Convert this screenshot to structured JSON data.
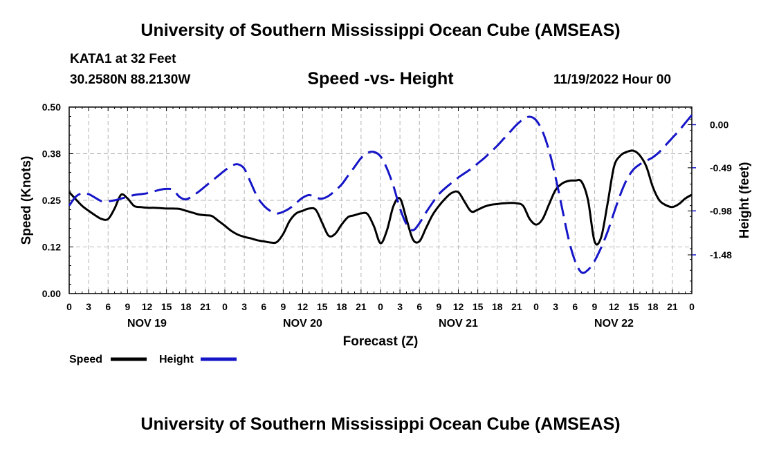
{
  "header": {
    "title": "University of Southern Mississippi Ocean Cube (AMSEAS)",
    "station": "KATA1 at 32 Feet",
    "coords": "30.2580N  88.2130W",
    "chart_title": "Speed -vs- Height",
    "datetime": "11/19/2022 Hour 00"
  },
  "footer": {
    "title": "University of Southern Mississippi Ocean Cube (AMSEAS)"
  },
  "colors": {
    "speed": "#000000",
    "height": "#1515c8",
    "grid": "#b4b4b4"
  },
  "chart_data": {
    "type": "line",
    "title": "Speed -vs- Height",
    "xlabel": "Forecast (Z)",
    "ylabel": "Speed (Knots)",
    "y2label": "Height (feet)",
    "x_range": [
      0,
      96
    ],
    "ylim": [
      0,
      0.5
    ],
    "y2lim": [
      -1.92,
      0.2
    ],
    "yticks": [
      "0.00",
      "0.12",
      "0.25",
      "0.38",
      "0.50"
    ],
    "y2ticks": [
      "0.00",
      "-0.49",
      "-0.98",
      "-1.48"
    ],
    "y2tick_values": [
      0.0,
      -0.49,
      -0.98,
      -1.48
    ],
    "xticks": [
      "0",
      "3",
      "6",
      "9",
      "12",
      "15",
      "18",
      "21",
      "0",
      "3",
      "6",
      "9",
      "12",
      "15",
      "18",
      "21",
      "0",
      "3",
      "6",
      "9",
      "12",
      "15",
      "18",
      "21",
      "0",
      "3",
      "6",
      "9",
      "12",
      "15",
      "18",
      "21",
      "0"
    ],
    "day_labels": [
      {
        "label": "NOV 19",
        "hour": 12
      },
      {
        "label": "NOV 20",
        "hour": 36
      },
      {
        "label": "NOV 21",
        "hour": 60
      },
      {
        "label": "NOV 22",
        "hour": 84
      }
    ],
    "legend": [
      "Speed",
      "Height"
    ],
    "series": [
      {
        "name": "Speed",
        "axis": "left",
        "x": [
          0,
          1,
          2,
          3,
          4,
          5,
          6,
          7,
          8,
          9,
          10,
          11,
          12,
          13,
          14,
          15,
          16,
          17,
          18,
          19,
          20,
          21,
          22,
          23,
          24,
          25,
          26,
          27,
          28,
          29,
          30,
          31,
          32,
          33,
          34,
          35,
          36,
          37,
          38,
          39,
          40,
          41,
          42,
          43,
          44,
          45,
          46,
          47,
          48,
          49,
          50,
          51,
          52,
          53,
          54,
          55,
          56,
          57,
          58,
          59,
          60,
          61,
          62,
          63,
          64,
          65,
          66,
          67,
          68,
          69,
          70,
          71,
          72,
          73,
          74,
          75,
          76,
          77,
          78,
          79,
          80,
          81,
          82,
          83,
          84,
          85,
          86,
          87,
          88,
          89,
          90,
          91,
          92,
          93,
          94,
          95,
          96
        ],
        "values": [
          0.272,
          0.253,
          0.235,
          0.222,
          0.21,
          0.2,
          0.2,
          0.228,
          0.265,
          0.255,
          0.235,
          0.232,
          0.23,
          0.23,
          0.229,
          0.228,
          0.228,
          0.227,
          0.222,
          0.217,
          0.212,
          0.21,
          0.208,
          0.195,
          0.182,
          0.168,
          0.158,
          0.152,
          0.148,
          0.143,
          0.14,
          0.137,
          0.138,
          0.16,
          0.195,
          0.215,
          0.222,
          0.228,
          0.225,
          0.19,
          0.155,
          0.16,
          0.185,
          0.205,
          0.21,
          0.215,
          0.213,
          0.18,
          0.135,
          0.17,
          0.235,
          0.255,
          0.2,
          0.145,
          0.14,
          0.175,
          0.21,
          0.235,
          0.255,
          0.27,
          0.272,
          0.245,
          0.22,
          0.225,
          0.233,
          0.238,
          0.24,
          0.242,
          0.243,
          0.242,
          0.235,
          0.2,
          0.185,
          0.2,
          0.24,
          0.278,
          0.295,
          0.302,
          0.303,
          0.3,
          0.25,
          0.14,
          0.15,
          0.24,
          0.34,
          0.37,
          0.38,
          0.383,
          0.37,
          0.34,
          0.285,
          0.25,
          0.237,
          0.232,
          0.24,
          0.255,
          0.265
        ]
      },
      {
        "name": "Height",
        "axis": "right",
        "x": [
          0,
          1,
          2,
          3,
          4,
          5,
          6,
          7,
          8,
          9,
          10,
          11,
          12,
          13,
          14,
          15,
          16,
          17,
          18,
          19,
          20,
          21,
          22,
          23,
          24,
          25,
          26,
          27,
          28,
          29,
          30,
          31,
          32,
          33,
          34,
          35,
          36,
          37,
          38,
          39,
          40,
          41,
          42,
          43,
          44,
          45,
          46,
          47,
          48,
          49,
          50,
          51,
          52,
          53,
          54,
          55,
          56,
          57,
          58,
          59,
          60,
          61,
          62,
          63,
          64,
          65,
          66,
          67,
          68,
          69,
          70,
          71,
          72,
          73,
          74,
          75,
          76,
          77,
          78,
          79,
          80,
          81,
          82,
          83,
          84,
          85,
          86,
          87,
          88,
          89,
          90,
          91,
          92,
          93,
          94,
          95,
          96
        ],
        "values": [
          -0.92,
          -0.82,
          -0.78,
          -0.79,
          -0.83,
          -0.87,
          -0.87,
          -0.86,
          -0.84,
          -0.82,
          -0.8,
          -0.79,
          -0.78,
          -0.76,
          -0.74,
          -0.73,
          -0.74,
          -0.82,
          -0.85,
          -0.81,
          -0.76,
          -0.7,
          -0.64,
          -0.58,
          -0.52,
          -0.47,
          -0.45,
          -0.5,
          -0.66,
          -0.82,
          -0.92,
          -0.98,
          -1.01,
          -0.99,
          -0.95,
          -0.89,
          -0.83,
          -0.8,
          -0.83,
          -0.84,
          -0.81,
          -0.75,
          -0.68,
          -0.58,
          -0.48,
          -0.38,
          -0.32,
          -0.31,
          -0.36,
          -0.5,
          -0.7,
          -0.95,
          -1.13,
          -1.2,
          -1.12,
          -1.0,
          -0.89,
          -0.79,
          -0.72,
          -0.66,
          -0.6,
          -0.55,
          -0.5,
          -0.44,
          -0.38,
          -0.31,
          -0.24,
          -0.16,
          -0.08,
          0.0,
          0.06,
          0.09,
          0.05,
          -0.08,
          -0.3,
          -0.6,
          -0.95,
          -1.3,
          -1.55,
          -1.68,
          -1.65,
          -1.55,
          -1.4,
          -1.22,
          -1.0,
          -0.79,
          -0.62,
          -0.51,
          -0.45,
          -0.41,
          -0.37,
          -0.31,
          -0.23,
          -0.15,
          -0.07,
          0.02,
          0.11
        ]
      }
    ]
  }
}
